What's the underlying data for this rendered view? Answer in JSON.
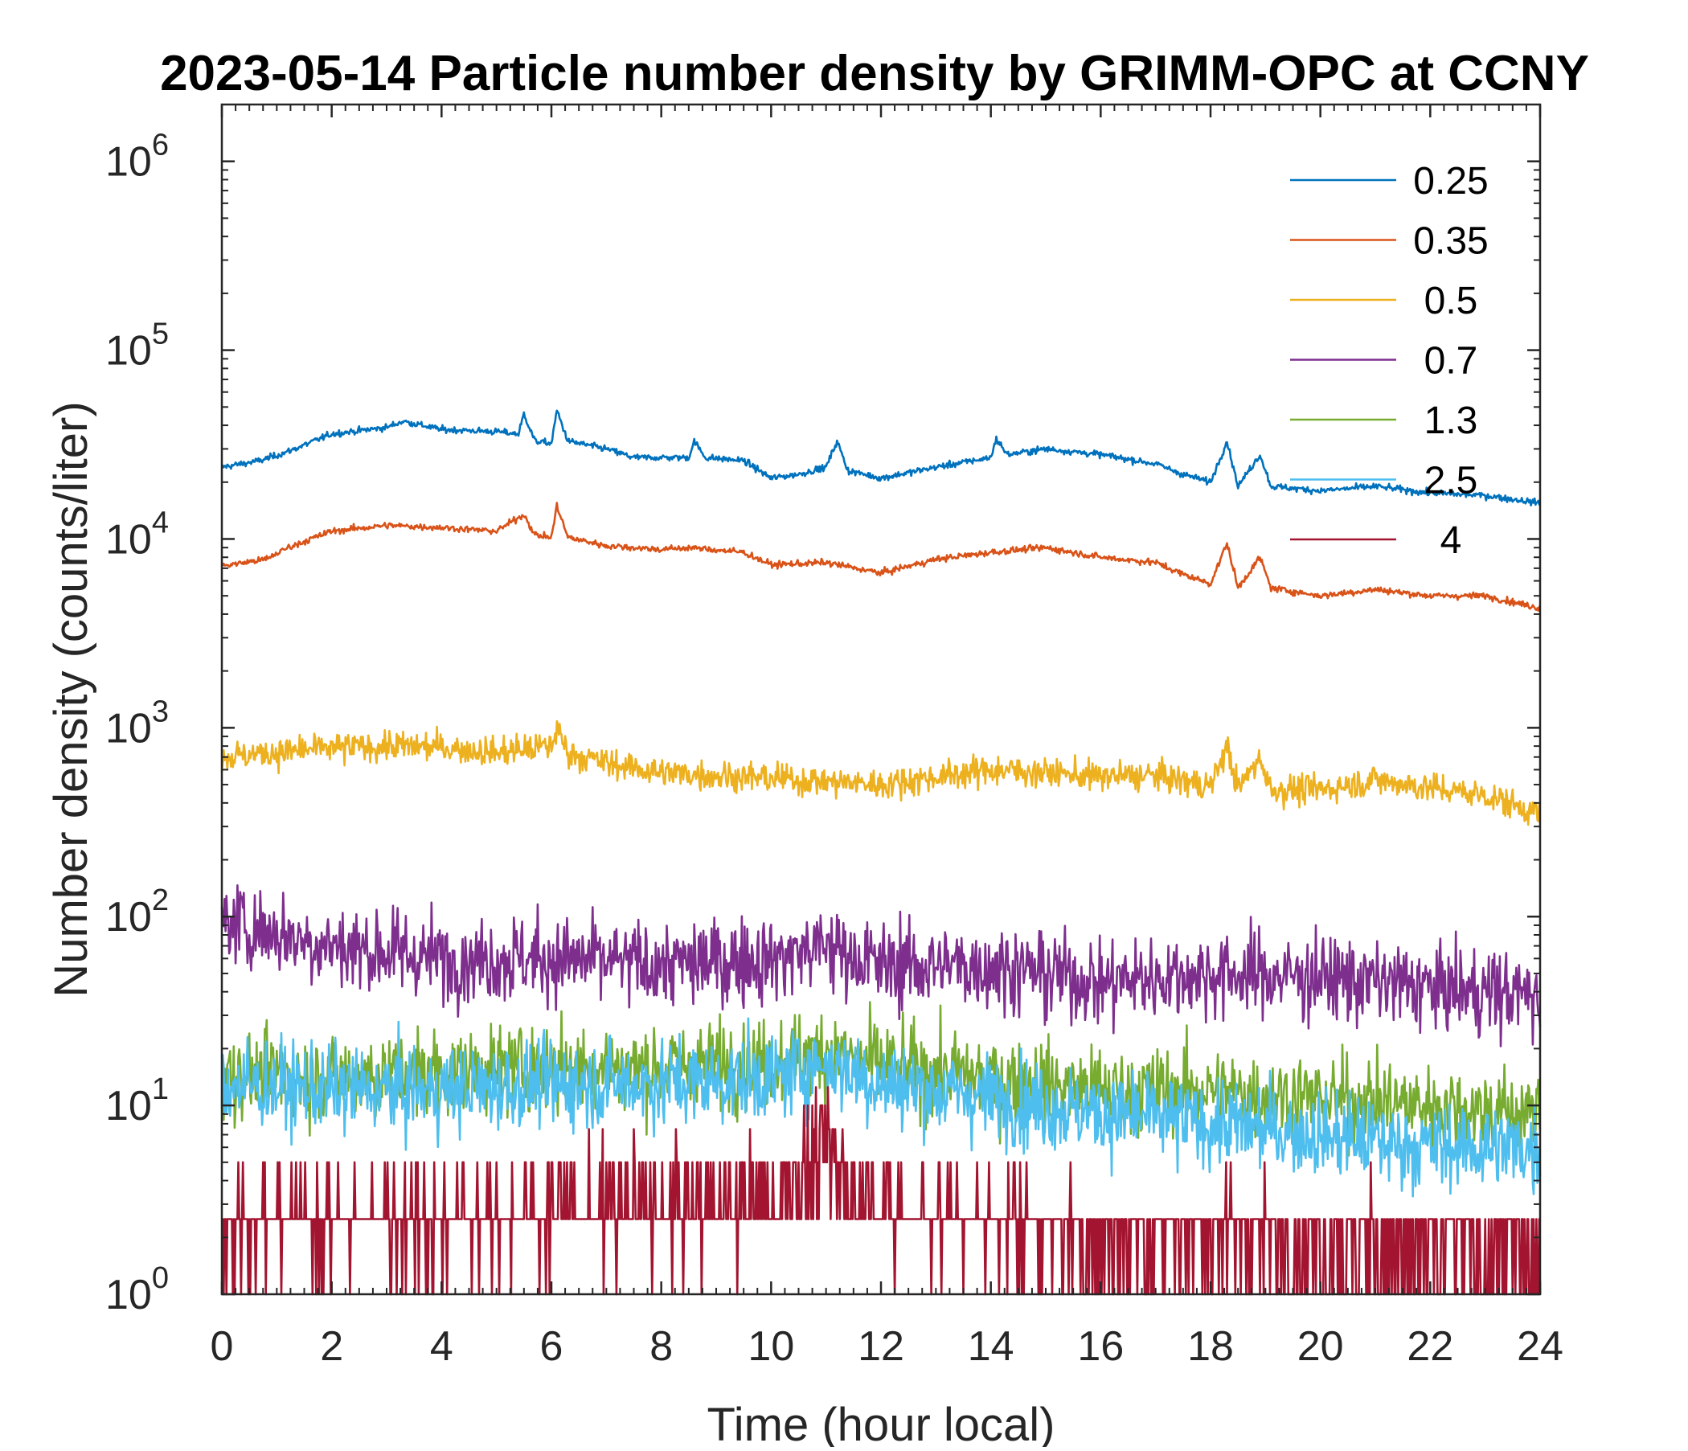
{
  "chart_data": {
    "type": "line",
    "title": "2023-05-14 Particle number density by GRIMM-OPC at CCNY",
    "xlabel": "Time (hour local)",
    "ylabel": "Number density (counts/liter)",
    "xlim": [
      0,
      24
    ],
    "ylim": [
      1,
      2000000
    ],
    "yscale": "log",
    "xticks": [
      0,
      2,
      4,
      6,
      8,
      10,
      12,
      14,
      16,
      18,
      20,
      22,
      24
    ],
    "xtick_labels": [
      "0",
      "2",
      "4",
      "6",
      "8",
      "10",
      "12",
      "14",
      "16",
      "18",
      "20",
      "22",
      "24"
    ],
    "ytick_exponents": [
      "0",
      "1",
      "2",
      "3",
      "4",
      "5",
      "6"
    ],
    "ytick_base": "10",
    "legend_position": "top-right",
    "grid": false,
    "series": [
      {
        "name": "0.25",
        "color": "#0072BD",
        "noise": "low",
        "points": [
          [
            0,
            24000
          ],
          [
            0.7,
            26000
          ],
          [
            1.2,
            29000
          ],
          [
            2,
            36000
          ],
          [
            3,
            39000
          ],
          [
            3.3,
            42000
          ],
          [
            4,
            38000
          ],
          [
            5,
            37000
          ],
          [
            5.4,
            36000
          ],
          [
            5.5,
            46000
          ],
          [
            5.7,
            33000
          ],
          [
            6,
            32000
          ],
          [
            6.1,
            48000
          ],
          [
            6.3,
            33000
          ],
          [
            7,
            30000
          ],
          [
            7.5,
            27000
          ],
          [
            8.5,
            27000
          ],
          [
            8.6,
            33000
          ],
          [
            8.8,
            27000
          ],
          [
            9.5,
            26000
          ],
          [
            10,
            21000
          ],
          [
            10.5,
            22000
          ],
          [
            11,
            24000
          ],
          [
            11.2,
            33000
          ],
          [
            11.4,
            23000
          ],
          [
            12,
            21000
          ],
          [
            13,
            24000
          ],
          [
            14,
            27000
          ],
          [
            14.1,
            34000
          ],
          [
            14.3,
            28000
          ],
          [
            15,
            30000
          ],
          [
            16,
            28000
          ],
          [
            17,
            25000
          ],
          [
            17.5,
            22000
          ],
          [
            18,
            20000
          ],
          [
            18.3,
            33000
          ],
          [
            18.5,
            19000
          ],
          [
            18.9,
            28000
          ],
          [
            19.1,
            19000
          ],
          [
            20,
            18000
          ],
          [
            21,
            19000
          ],
          [
            22,
            17500
          ],
          [
            23,
            17000
          ],
          [
            24,
            15500
          ]
        ]
      },
      {
        "name": "0.35",
        "color": "#D95319",
        "noise": "low",
        "points": [
          [
            0,
            7200
          ],
          [
            0.8,
            7800
          ],
          [
            1.2,
            9000
          ],
          [
            2,
            11000
          ],
          [
            3,
            11800
          ],
          [
            4,
            11500
          ],
          [
            5,
            11000
          ],
          [
            5.5,
            13500
          ],
          [
            5.7,
            10500
          ],
          [
            6,
            10200
          ],
          [
            6.1,
            15000
          ],
          [
            6.3,
            10200
          ],
          [
            7,
            9200
          ],
          [
            8,
            8800
          ],
          [
            8.5,
            9000
          ],
          [
            9.5,
            8500
          ],
          [
            10,
            7300
          ],
          [
            11,
            7500
          ],
          [
            12,
            6600
          ],
          [
            13,
            7800
          ],
          [
            14,
            8500
          ],
          [
            15,
            9000
          ],
          [
            16,
            8000
          ],
          [
            17,
            7500
          ],
          [
            17.5,
            6500
          ],
          [
            18,
            5800
          ],
          [
            18.3,
            9500
          ],
          [
            18.5,
            5500
          ],
          [
            18.9,
            8000
          ],
          [
            19.1,
            5500
          ],
          [
            20,
            5000
          ],
          [
            21,
            5400
          ],
          [
            22,
            5000
          ],
          [
            23,
            5000
          ],
          [
            24,
            4300
          ]
        ]
      },
      {
        "name": "0.5",
        "color": "#EDB120",
        "noise": "medium",
        "points": [
          [
            0,
            700
          ],
          [
            2,
            780
          ],
          [
            3,
            800
          ],
          [
            4,
            790
          ],
          [
            5,
            740
          ],
          [
            6,
            800
          ],
          [
            6.1,
            1000
          ],
          [
            6.3,
            740
          ],
          [
            7,
            650
          ],
          [
            8,
            580
          ],
          [
            9,
            560
          ],
          [
            10,
            540
          ],
          [
            11,
            520
          ],
          [
            12,
            500
          ],
          [
            13,
            550
          ],
          [
            14,
            600
          ],
          [
            15,
            580
          ],
          [
            16,
            550
          ],
          [
            17,
            560
          ],
          [
            18,
            490
          ],
          [
            18.3,
            800
          ],
          [
            18.5,
            470
          ],
          [
            18.9,
            700
          ],
          [
            19.1,
            470
          ],
          [
            20,
            470
          ],
          [
            21,
            530
          ],
          [
            22,
            480
          ],
          [
            23,
            440
          ],
          [
            24,
            350
          ]
        ]
      },
      {
        "name": "0.7",
        "color": "#7E2F8E",
        "noise": "high",
        "points": [
          [
            0,
            95
          ],
          [
            2,
            70
          ],
          [
            4,
            60
          ],
          [
            6,
            60
          ],
          [
            8,
            55
          ],
          [
            10,
            60
          ],
          [
            11,
            70
          ],
          [
            12,
            55
          ],
          [
            14,
            55
          ],
          [
            16,
            45
          ],
          [
            18,
            50
          ],
          [
            20,
            48
          ],
          [
            22,
            42
          ],
          [
            24,
            38
          ]
        ]
      },
      {
        "name": "1.3",
        "color": "#77AC30",
        "noise": "high",
        "points": [
          [
            0,
            15
          ],
          [
            2,
            14
          ],
          [
            4,
            15
          ],
          [
            6,
            16
          ],
          [
            8,
            16
          ],
          [
            10,
            17
          ],
          [
            11,
            20
          ],
          [
            12,
            16
          ],
          [
            14,
            14
          ],
          [
            16,
            12
          ],
          [
            18,
            12
          ],
          [
            20,
            11
          ],
          [
            22,
            10
          ],
          [
            24,
            9
          ]
        ]
      },
      {
        "name": "2.5",
        "color": "#4DBEEE",
        "noise": "high",
        "points": [
          [
            0,
            13
          ],
          [
            2,
            12
          ],
          [
            4,
            12
          ],
          [
            6,
            13
          ],
          [
            8,
            13
          ],
          [
            10,
            14
          ],
          [
            11,
            17
          ],
          [
            12,
            13
          ],
          [
            14,
            11
          ],
          [
            16,
            9
          ],
          [
            18,
            8
          ],
          [
            20,
            7
          ],
          [
            22,
            6
          ],
          [
            24,
            6
          ]
        ]
      },
      {
        "name": "4",
        "color": "#A2142F",
        "noise": "counting",
        "points": [
          [
            0,
            2.5
          ],
          [
            2,
            2.5
          ],
          [
            4,
            2.5
          ],
          [
            6,
            3
          ],
          [
            8,
            3
          ],
          [
            10,
            3.5
          ],
          [
            11,
            6
          ],
          [
            12,
            3
          ],
          [
            14,
            2.5
          ],
          [
            16,
            2
          ],
          [
            18,
            2
          ],
          [
            20,
            1.8
          ],
          [
            22,
            1.6
          ],
          [
            24,
            1.5
          ]
        ]
      }
    ]
  }
}
